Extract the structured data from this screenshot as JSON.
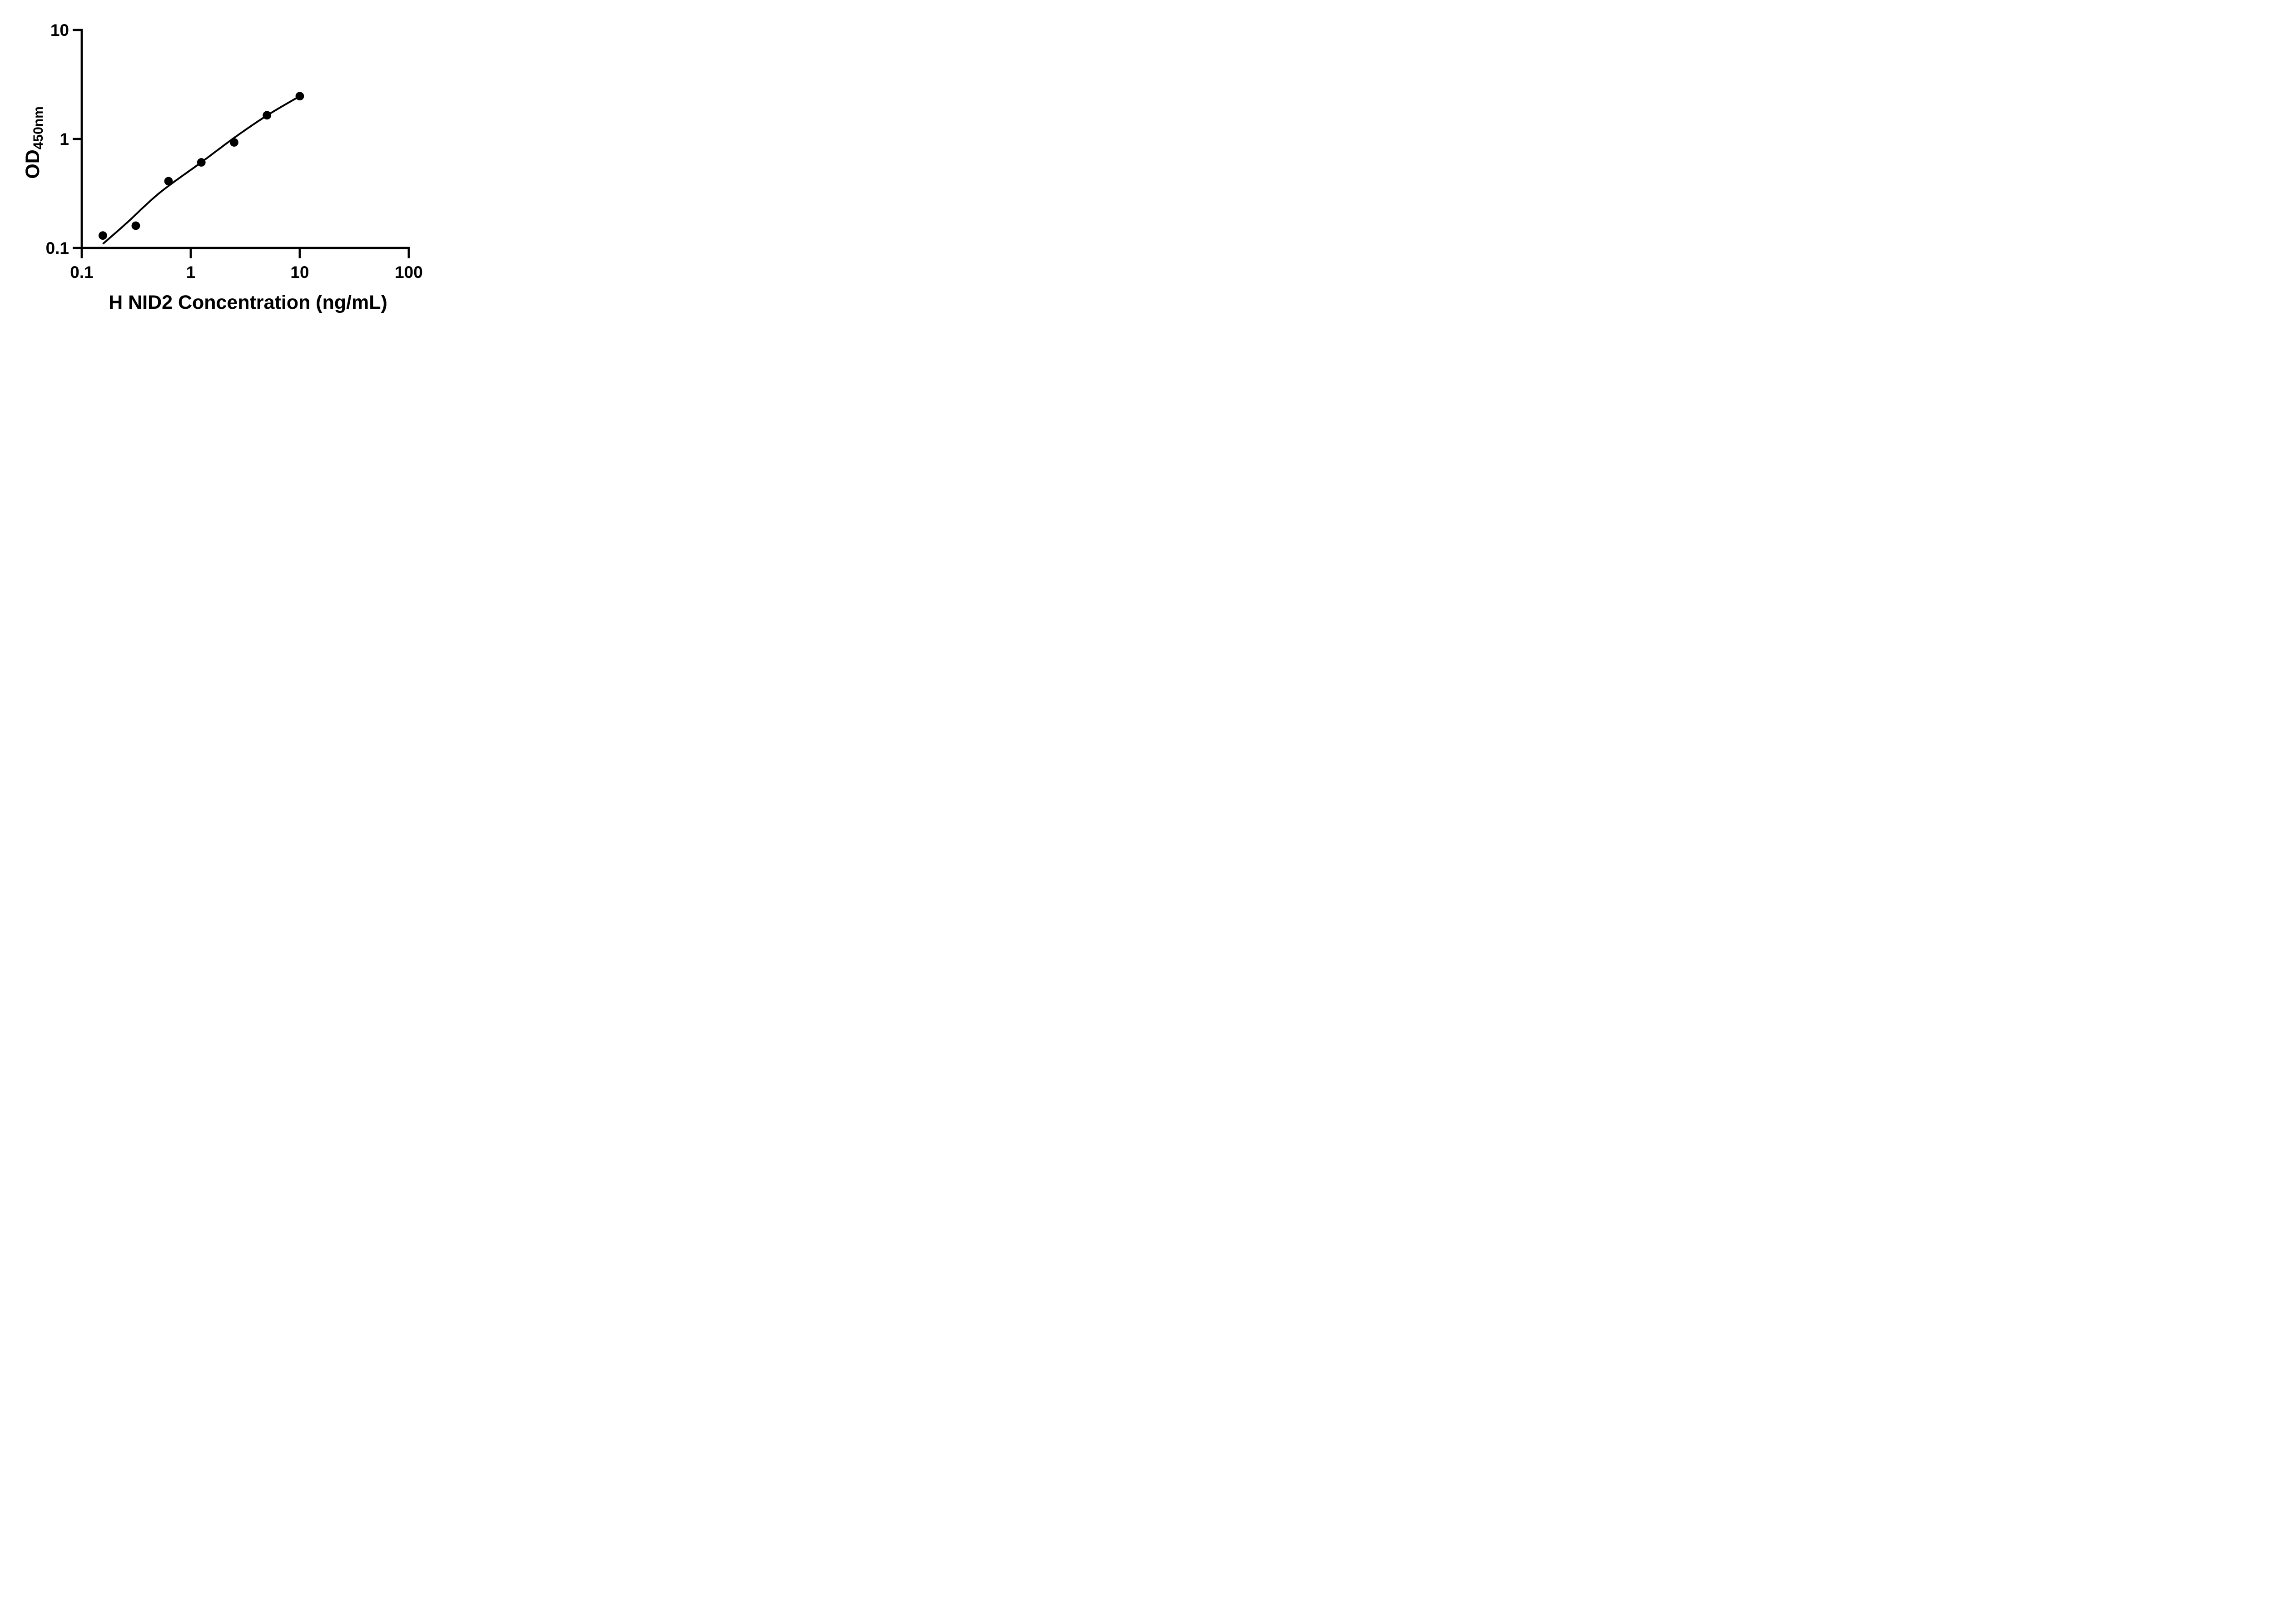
{
  "page": {
    "background": "#ffffff"
  },
  "chart_data": {
    "type": "scatter",
    "title": "",
    "xlabel": "H NID2 Concentration (ng/mL)",
    "ylabel_main": "OD",
    "ylabel_sub": "450nm",
    "x_scale": "log",
    "y_scale": "log",
    "xlim": [
      0.1,
      100
    ],
    "ylim": [
      0.1,
      10
    ],
    "grid": false,
    "legend_position": "none",
    "x_ticks": [
      {
        "value": 0.1,
        "label": "0.1"
      },
      {
        "value": 1,
        "label": "1"
      },
      {
        "value": 10,
        "label": "10"
      },
      {
        "value": 100,
        "label": "100"
      }
    ],
    "y_ticks": [
      {
        "value": 0.1,
        "label": "0.1"
      },
      {
        "value": 1,
        "label": "1"
      },
      {
        "value": 10,
        "label": "10"
      }
    ],
    "series": [
      {
        "name": "standard-points",
        "marker": "filled-circle",
        "color": "#000000",
        "points": [
          {
            "x": 0.156,
            "y": 0.13
          },
          {
            "x": 0.313,
            "y": 0.16
          },
          {
            "x": 0.625,
            "y": 0.41
          },
          {
            "x": 1.25,
            "y": 0.61
          },
          {
            "x": 2.5,
            "y": 0.93
          },
          {
            "x": 5,
            "y": 1.65
          },
          {
            "x": 10,
            "y": 2.47
          }
        ]
      }
    ],
    "trend_line": {
      "name": "fitted-curve",
      "color": "#000000",
      "points": [
        {
          "x": 0.158,
          "y": 0.11
        },
        {
          "x": 0.256,
          "y": 0.168
        },
        {
          "x": 0.521,
          "y": 0.322
        },
        {
          "x": 1.25,
          "y": 0.611
        },
        {
          "x": 2.52,
          "y": 1.03
        },
        {
          "x": 4.99,
          "y": 1.64
        },
        {
          "x": 10,
          "y": 2.47
        }
      ]
    }
  },
  "style": {
    "axis_color": "#000000",
    "marker_color": "#000000",
    "curve_color": "#000000",
    "background": "#ffffff"
  }
}
